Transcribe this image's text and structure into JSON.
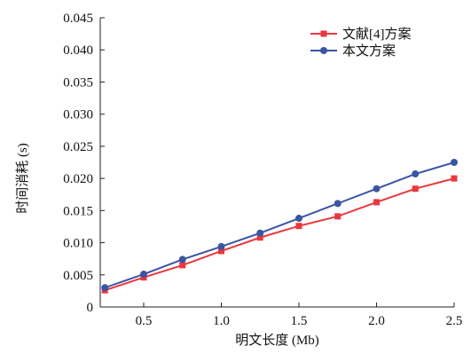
{
  "chart_data": {
    "type": "line",
    "title": "",
    "xlabel": "明文长度 (Mb)",
    "ylabel": "时间消耗 (s)",
    "xlim": [
      0.25,
      2.5
    ],
    "ylim": [
      0,
      0.045
    ],
    "x_ticks": [
      "0.5",
      "1.0",
      "1.5",
      "2.0",
      "2.5"
    ],
    "y_ticks": [
      "0",
      "0.005",
      "0.010",
      "0.015",
      "0.020",
      "0.025",
      "0.030",
      "0.035",
      "0.040",
      "0.045"
    ],
    "x": [
      0.25,
      0.5,
      0.75,
      1.0,
      1.25,
      1.5,
      1.75,
      2.0,
      2.25,
      2.5
    ],
    "grid": false,
    "legend_position": "top-right",
    "series": [
      {
        "name": "文献[4]方案",
        "color": "#e8383d",
        "marker": "square",
        "values": [
          0.0026,
          0.0046,
          0.0065,
          0.0087,
          0.0108,
          0.0126,
          0.0141,
          0.0163,
          0.0184,
          0.02
        ]
      },
      {
        "name": "本文方案",
        "color": "#3a55a4",
        "marker": "circle",
        "values": [
          0.003,
          0.0051,
          0.0074,
          0.0094,
          0.0115,
          0.0138,
          0.0161,
          0.0184,
          0.0207,
          0.0225
        ]
      }
    ]
  }
}
